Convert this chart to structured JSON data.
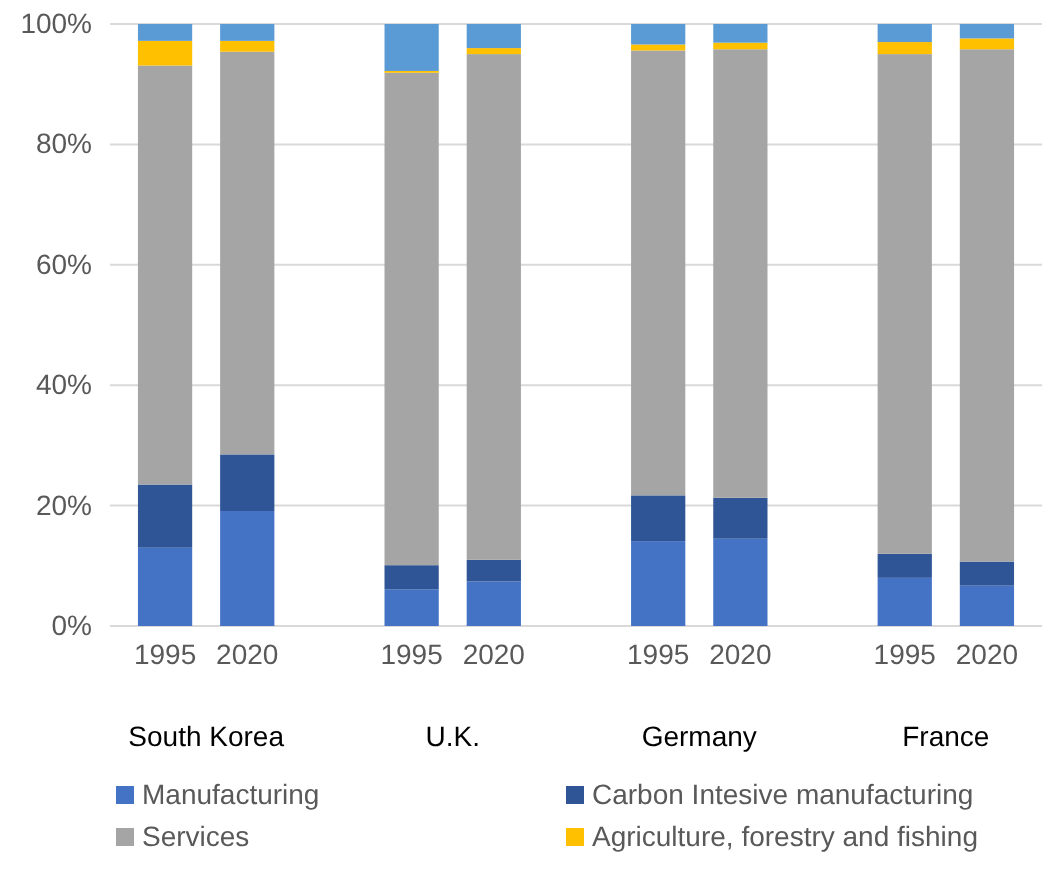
{
  "chart_data": {
    "type": "bar",
    "stacked": true,
    "categories": [
      "1995",
      "2020",
      null,
      "1995",
      "2020",
      null,
      "1995",
      "2020",
      null,
      "1995",
      "2020"
    ],
    "series": [
      {
        "name": "Manufacturing",
        "color": "#4472c4",
        "values": [
          13,
          19.1,
          null,
          6.1,
          7.4,
          null,
          14.1,
          14.5,
          null,
          8,
          6.7
        ]
      },
      {
        "name": "Carbon Intesive manufacturing",
        "color": "#2f5597",
        "values": [
          10.5,
          9.4,
          null,
          4,
          3.6,
          null,
          7.6,
          6.8,
          null,
          4,
          4
        ]
      },
      {
        "name": "Services",
        "color": "#a5a5a5",
        "values": [
          69.6,
          66.9,
          null,
          81.8,
          84,
          null,
          73.9,
          74.5,
          null,
          83,
          85.1
        ]
      },
      {
        "name": "Agriculture, forestry and fishing",
        "color": "#ffc000",
        "values": [
          4.1,
          1.8,
          null,
          0.3,
          1,
          null,
          1,
          1.1,
          null,
          2,
          1.8
        ]
      },
      {
        "color": "#5b9bd5",
        "values": [
          2.8,
          2.8,
          null,
          7.8,
          4,
          null,
          3.4,
          3.1,
          null,
          3,
          2.4
        ]
      }
    ],
    "ylim": [
      0,
      100
    ],
    "yticks": [
      {
        "value": 0,
        "label": "0%"
      },
      {
        "value": 20,
        "label": "20%"
      },
      {
        "value": 40,
        "label": "40%"
      },
      {
        "value": 60,
        "label": "60%"
      },
      {
        "value": 80,
        "label": "80%"
      },
      {
        "value": 100,
        "label": "100%"
      }
    ],
    "grid": "y",
    "legend": "bottom",
    "annotations": [
      "South Korea",
      "U.K.",
      "Germany",
      "France"
    ]
  }
}
